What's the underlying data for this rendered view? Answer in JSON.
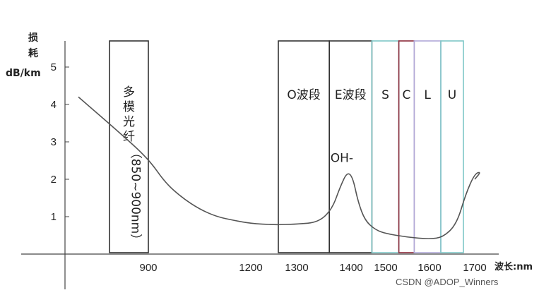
{
  "chart_data": {
    "type": "line",
    "title": "",
    "ylabel_lines": [
      "损",
      "耗",
      "dB/km"
    ],
    "xlabel": "波长:nm",
    "ylim": [
      0,
      5
    ],
    "y_ticks": [
      1,
      2,
      3,
      4,
      5
    ],
    "x_ticks": [
      900,
      1200,
      1300,
      1400,
      1500,
      1600,
      1700
    ],
    "series": [
      {
        "values": [
          [
            810,
            4.2
          ],
          [
            860,
            3.3
          ],
          [
            900,
            2.55
          ],
          [
            950,
            1.9
          ],
          [
            1000,
            1.5
          ],
          [
            1050,
            1.2
          ],
          [
            1100,
            1.0
          ],
          [
            1150,
            0.9
          ],
          [
            1200,
            0.82
          ],
          [
            1250,
            0.78
          ],
          [
            1300,
            0.8
          ],
          [
            1340,
            0.85
          ],
          [
            1365,
            1.2
          ],
          [
            1380,
            1.8
          ],
          [
            1393,
            2.2
          ],
          [
            1405,
            2.05
          ],
          [
            1420,
            1.4
          ],
          [
            1440,
            0.9
          ],
          [
            1470,
            0.65
          ],
          [
            1500,
            0.55
          ],
          [
            1550,
            0.45
          ],
          [
            1600,
            0.4
          ],
          [
            1630,
            0.45
          ],
          [
            1660,
            0.8
          ],
          [
            1680,
            1.6
          ],
          [
            1700,
            2.15
          ],
          [
            1710,
            2.2
          ],
          [
            1700,
            2.0
          ]
        ]
      }
    ],
    "bands": [
      {
        "label": "多模光纤",
        "sublabel": "（850~900nm）",
        "range": [
          850,
          900
        ],
        "color": "#333333",
        "vertical": true
      },
      {
        "label": "O波段",
        "range": [
          1260,
          1360
        ],
        "color": "#333333"
      },
      {
        "label": "E波段",
        "range": [
          1360,
          1460
        ],
        "color": "#333333"
      },
      {
        "label": "S",
        "range": [
          1460,
          1530
        ],
        "color": "#7fc7c7"
      },
      {
        "label": "C",
        "range": [
          1530,
          1565
        ],
        "color": "#8b2a3a"
      },
      {
        "label": "L",
        "range": [
          1565,
          1625
        ],
        "color": "#b0a8d8"
      },
      {
        "label": "U",
        "range": [
          1625,
          1675
        ],
        "color": "#7fc7c7"
      }
    ],
    "annotations": [
      {
        "text": "OH-",
        "x": 1383,
        "y": 2.35
      }
    ],
    "grid": false
  },
  "watermark": "CSDN @ADOP_Winners"
}
